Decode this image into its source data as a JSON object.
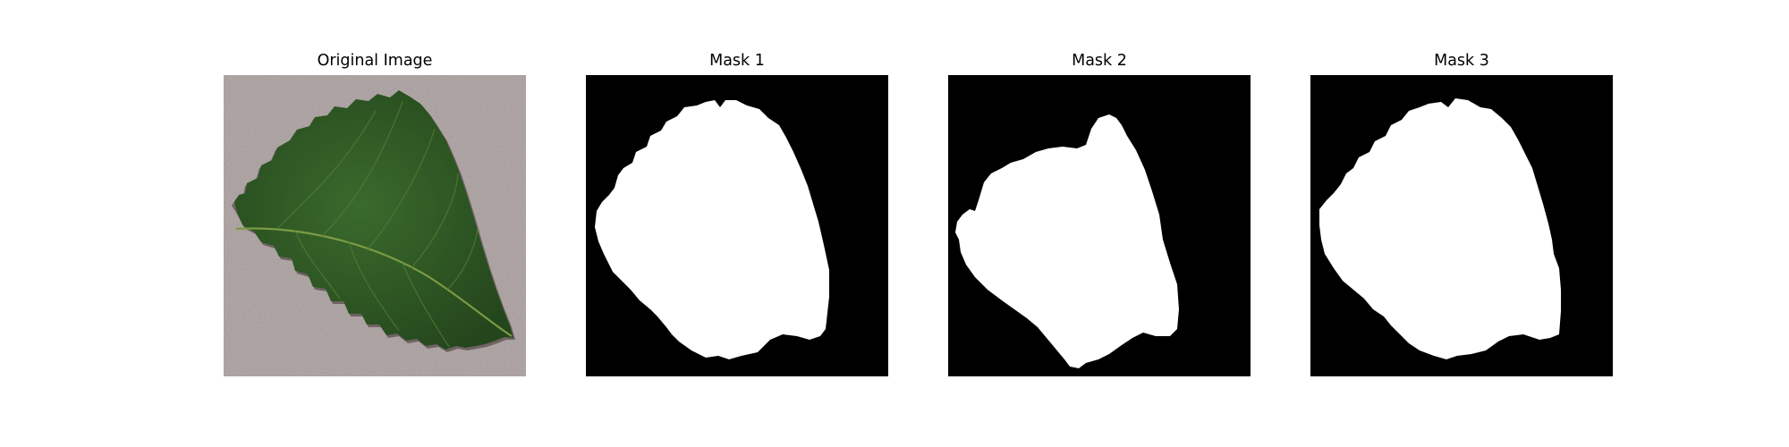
{
  "figure": {
    "panels": [
      {
        "title": "Original Image",
        "kind": "photo"
      },
      {
        "title": "Mask 1",
        "kind": "mask"
      },
      {
        "title": "Mask 2",
        "kind": "mask"
      },
      {
        "title": "Mask 3",
        "kind": "mask"
      }
    ]
  },
  "colors": {
    "background": "#a89d9c",
    "leaf": "#2f5a26",
    "leaf_dark": "#1f3d18",
    "vein": "#6b8a3c",
    "mask_bg": "#000000",
    "mask_fg": "#ffffff"
  }
}
